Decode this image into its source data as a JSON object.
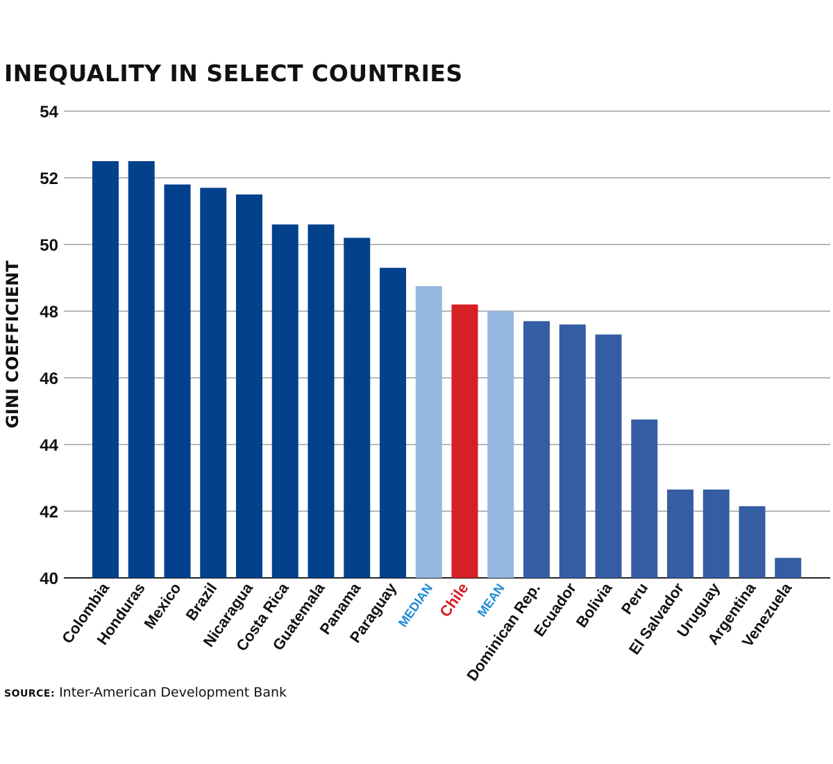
{
  "chart_data": {
    "type": "bar",
    "title": "INEQUALITY IN SELECT COUNTRIES",
    "ylabel": "GINI COEFFICIENT",
    "xlabel": "",
    "ylim": [
      40,
      54
    ],
    "yticks": [
      40,
      42,
      44,
      46,
      48,
      50,
      52,
      54
    ],
    "grid": true,
    "categories": [
      "Colombia",
      "Honduras",
      "Mexico",
      "Brazil",
      "Nicaragua",
      "Costa Rica",
      "Guatemala",
      "Panama",
      "Paraguay",
      "MEDIAN",
      "Chile",
      "MEAN",
      "Dominican Rep.",
      "Ecuador",
      "Bolivia",
      "Peru",
      "El Salvador",
      "Uruguay",
      "Argentina",
      "Venezuela"
    ],
    "values": [
      52.5,
      52.5,
      51.8,
      51.7,
      51.5,
      50.6,
      50.6,
      50.2,
      49.3,
      48.75,
      48.2,
      48.0,
      47.7,
      47.6,
      47.3,
      44.75,
      42.65,
      42.65,
      42.15,
      40.6
    ],
    "bar_colors": [
      "#03418c",
      "#03418c",
      "#03418c",
      "#03418c",
      "#03418c",
      "#03418c",
      "#03418c",
      "#03418c",
      "#03418c",
      "#93b7e0",
      "#d71f26",
      "#93b7e0",
      "#345da3",
      "#345da3",
      "#345da3",
      "#345da3",
      "#345da3",
      "#345da3",
      "#345da3",
      "#345da3"
    ],
    "label_colors": [
      "#111111",
      "#111111",
      "#111111",
      "#111111",
      "#111111",
      "#111111",
      "#111111",
      "#111111",
      "#111111",
      "#1a8ad4",
      "#d71f26",
      "#1a8ad4",
      "#111111",
      "#111111",
      "#111111",
      "#111111",
      "#111111",
      "#111111",
      "#111111",
      "#111111"
    ]
  },
  "source": {
    "label": "SOURCE:",
    "text": "Inter-American Development Bank"
  },
  "colors": {
    "gridline": "#8c8c8c",
    "axis": "#222222"
  }
}
